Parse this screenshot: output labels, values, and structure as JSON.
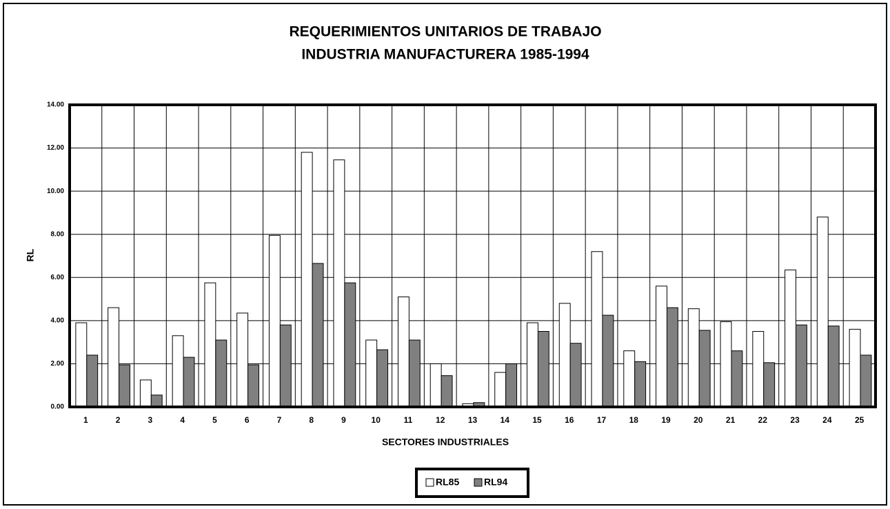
{
  "chart_data": {
    "type": "bar",
    "title": "REQUERIMIENTOS UNITARIOS DE TRABAJO",
    "subtitle": "INDUSTRIA MANUFACTURERA 1985-1994",
    "x_label": "SECTORES INDUSTRIALES",
    "y_label": "RL",
    "categories": [
      "1",
      "2",
      "3",
      "4",
      "5",
      "6",
      "7",
      "8",
      "9",
      "10",
      "11",
      "12",
      "13",
      "14",
      "15",
      "16",
      "17",
      "18",
      "19",
      "20",
      "21",
      "22",
      "23",
      "24",
      "25"
    ],
    "series": [
      {
        "name": "RL85",
        "color": "#ffffff",
        "values": [
          3.9,
          4.6,
          1.25,
          3.3,
          5.75,
          4.35,
          7.95,
          11.8,
          11.45,
          3.1,
          5.1,
          2.0,
          0.15,
          1.6,
          3.9,
          4.8,
          7.2,
          2.6,
          5.6,
          4.55,
          3.95,
          3.5,
          6.35,
          8.8,
          3.6
        ]
      },
      {
        "name": "RL94",
        "color": "#808080",
        "values": [
          2.4,
          1.95,
          0.55,
          2.3,
          3.1,
          1.95,
          3.8,
          6.65,
          5.75,
          2.65,
          3.1,
          1.45,
          0.2,
          2.0,
          3.5,
          2.95,
          4.25,
          2.1,
          4.6,
          3.55,
          2.6,
          2.05,
          3.8,
          3.75,
          2.4
        ]
      }
    ],
    "ylim": [
      0,
      14
    ],
    "yticks": [
      {
        "value": 0,
        "label": "0.00"
      },
      {
        "value": 2,
        "label": "2.00"
      },
      {
        "value": 4,
        "label": "4.00"
      },
      {
        "value": 6,
        "label": "6.00"
      },
      {
        "value": 8,
        "label": "8.00"
      },
      {
        "value": 10,
        "label": "10.00"
      },
      {
        "value": 12,
        "label": "12.00"
      },
      {
        "value": 14,
        "label": "14.00"
      }
    ],
    "grid": true,
    "legend": "bottom"
  }
}
